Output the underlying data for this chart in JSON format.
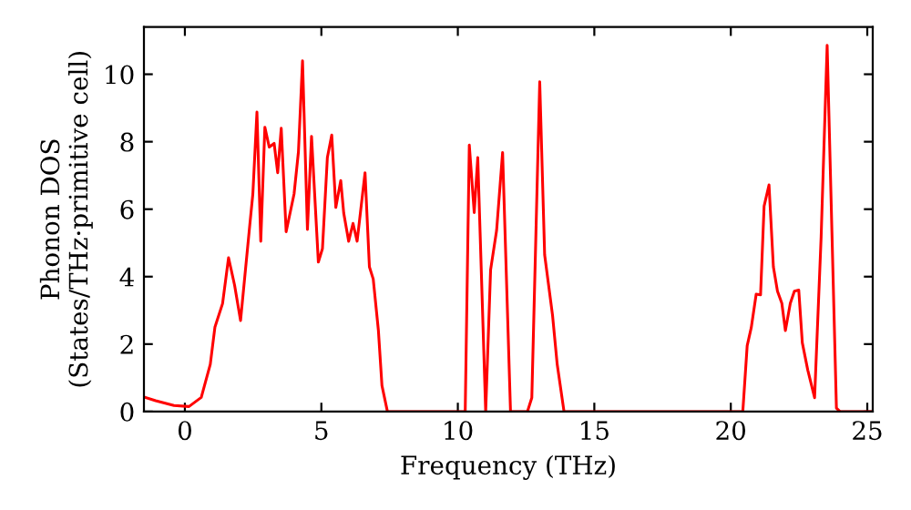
{
  "chart_data": {
    "type": "line",
    "xlabel": "Frequency (THz)",
    "ylabel": "Phonon DOS\n(States/THz·primitive cell)",
    "xlim": [
      -1.5,
      25.2
    ],
    "ylim": [
      0,
      11.4
    ],
    "xticks": [
      0,
      5,
      10,
      15,
      20,
      25
    ],
    "yticks": [
      0,
      2,
      4,
      6,
      8,
      10
    ],
    "grid": false,
    "legend": false,
    "marker": "none",
    "line_style": "solid",
    "series": [
      {
        "color": "#ff0000",
        "x": [
          -1.5,
          -1.07,
          -0.4,
          0.15,
          0.6,
          0.93,
          1.1,
          1.38,
          1.6,
          1.82,
          2.04,
          2.38,
          2.49,
          2.64,
          2.78,
          2.93,
          3.09,
          3.27,
          3.4,
          3.53,
          3.71,
          4.0,
          4.16,
          4.31,
          4.49,
          4.64,
          4.89,
          5.04,
          5.22,
          5.38,
          5.53,
          5.71,
          5.82,
          6.0,
          6.16,
          6.31,
          6.6,
          6.76,
          6.9,
          7.09,
          7.22,
          7.42,
          10.27,
          10.42,
          10.6,
          10.73,
          11.02,
          11.2,
          11.42,
          11.64,
          11.93,
          12.55,
          12.71,
          13.0,
          13.18,
          13.47,
          13.64,
          13.89,
          20.44,
          20.6,
          20.75,
          20.93,
          21.09,
          21.22,
          21.4,
          21.56,
          21.71,
          21.87,
          22.0,
          22.18,
          22.33,
          22.49,
          22.62,
          22.82,
          23.07,
          23.31,
          23.53,
          23.87,
          24.0,
          25.2
        ],
        "values": [
          0.43,
          0.32,
          0.18,
          0.15,
          0.42,
          1.4,
          2.5,
          3.2,
          4.56,
          3.75,
          2.7,
          5.55,
          6.45,
          8.88,
          5.05,
          8.43,
          7.84,
          7.95,
          7.08,
          8.4,
          5.33,
          6.45,
          7.7,
          10.4,
          5.4,
          8.16,
          4.43,
          4.83,
          7.53,
          8.2,
          6.05,
          6.85,
          5.88,
          5.05,
          5.58,
          5.05,
          7.08,
          4.29,
          3.93,
          2.4,
          0.77,
          0,
          0,
          7.9,
          5.9,
          7.53,
          0,
          4.2,
          5.37,
          7.68,
          0,
          0,
          0.41,
          9.78,
          4.65,
          2.85,
          1.4,
          0,
          0,
          1.95,
          2.49,
          3.48,
          3.46,
          6.09,
          6.72,
          4.29,
          3.57,
          3.21,
          2.4,
          3.21,
          3.57,
          3.6,
          2.04,
          1.23,
          0.41,
          5.19,
          10.86,
          0.1,
          0,
          0
        ]
      }
    ]
  }
}
